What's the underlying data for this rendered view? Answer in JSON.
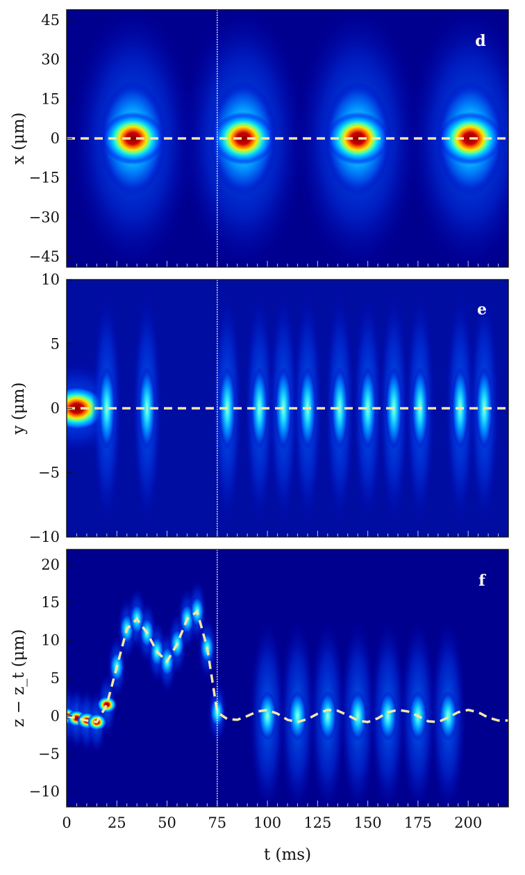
{
  "chart_data": [
    {
      "type": "heatmap",
      "panel": "d",
      "ylabel": "x (μm)",
      "xlim": [
        0,
        220
      ],
      "ylim": [
        -49,
        49
      ],
      "yticks": [
        45,
        30,
        15,
        0,
        -15,
        -30,
        -45
      ],
      "ytick_labels": [
        "45",
        "30",
        "15",
        "0",
        "−15",
        "−30",
        "−45"
      ],
      "dashed_center": [
        [
          0,
          0
        ],
        [
          220,
          0
        ]
      ],
      "marker_line_t": 75,
      "bright_centers_t": [
        33,
        88,
        145,
        201
      ],
      "colormap": "jet",
      "background": "#00008f"
    },
    {
      "type": "heatmap",
      "panel": "e",
      "ylabel": "y (μm)",
      "xlim": [
        0,
        220
      ],
      "ylim": [
        -10,
        10
      ],
      "yticks": [
        10,
        5,
        0,
        -5,
        -10
      ],
      "ytick_labels": [
        "10",
        "5",
        "0",
        "−5",
        "−10"
      ],
      "dashed_center": [
        [
          0,
          0
        ],
        [
          220,
          0
        ]
      ],
      "marker_line_t": 75,
      "bright_centers_t": [
        5,
        20,
        40,
        80,
        96,
        108,
        120,
        136,
        150,
        163,
        176,
        196,
        208
      ],
      "colormap": "jet",
      "background": "#00008f"
    },
    {
      "type": "heatmap",
      "panel": "f",
      "ylabel": "z − z_t (μm)",
      "xlabel": "t (ms)",
      "xlim": [
        0,
        220
      ],
      "ylim": [
        -12,
        22
      ],
      "xticks": [
        0,
        25,
        50,
        75,
        100,
        125,
        150,
        175,
        200
      ],
      "xtick_labels": [
        "0",
        "25",
        "50",
        "75",
        "100",
        "125",
        "150",
        "175",
        "200"
      ],
      "yticks": [
        20,
        15,
        10,
        5,
        0,
        -5,
        -10
      ],
      "ytick_labels": [
        "20",
        "15",
        "10",
        "5",
        "0",
        "−5",
        "−10"
      ],
      "dashed_center": [
        [
          0,
          0
        ],
        [
          5,
          -0.3
        ],
        [
          10,
          -0.6
        ],
        [
          15,
          -0.8
        ],
        [
          20,
          1.5
        ],
        [
          25,
          6.5
        ],
        [
          30,
          11.5
        ],
        [
          35,
          12.8
        ],
        [
          40,
          11.0
        ],
        [
          45,
          8.5
        ],
        [
          50,
          7.2
        ],
        [
          55,
          9.5
        ],
        [
          60,
          12.8
        ],
        [
          65,
          13.8
        ],
        [
          70,
          9.0
        ],
        [
          75,
          0.5
        ],
        [
          80,
          -0.4
        ],
        [
          85,
          -0.5
        ],
        [
          90,
          0.0
        ],
        [
          95,
          0.6
        ],
        [
          100,
          0.8
        ],
        [
          105,
          0.3
        ],
        [
          110,
          -0.5
        ],
        [
          115,
          -0.8
        ],
        [
          120,
          -0.4
        ],
        [
          125,
          0.3
        ],
        [
          130,
          0.8
        ],
        [
          135,
          0.7
        ],
        [
          140,
          0.1
        ],
        [
          145,
          -0.6
        ],
        [
          150,
          -0.8
        ],
        [
          155,
          -0.3
        ],
        [
          160,
          0.5
        ],
        [
          165,
          0.8
        ],
        [
          170,
          0.6
        ],
        [
          175,
          0.0
        ],
        [
          180,
          -0.7
        ],
        [
          185,
          -0.8
        ],
        [
          190,
          -0.2
        ],
        [
          195,
          0.5
        ],
        [
          200,
          0.8
        ],
        [
          205,
          0.5
        ],
        [
          210,
          -0.2
        ],
        [
          215,
          -0.6
        ],
        [
          220,
          -0.6
        ]
      ],
      "marker_line_t": 75,
      "bright_centers_t": [
        100,
        115,
        130,
        145,
        160,
        175,
        190
      ],
      "colormap": "jet",
      "background": "#00008f"
    }
  ]
}
